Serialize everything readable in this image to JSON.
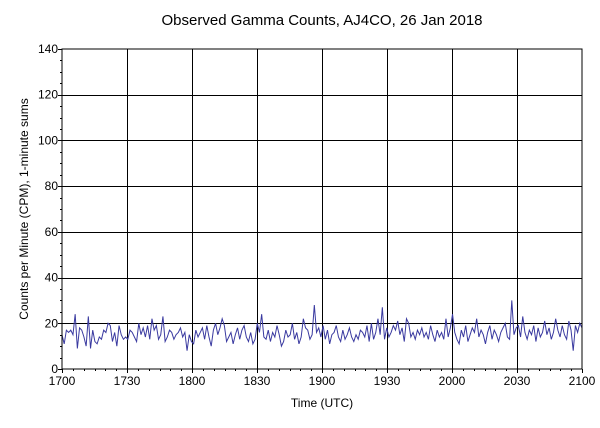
{
  "chart_data": {
    "type": "line",
    "title": "Observed Gamma Counts, AJ4CO, 26 Jan 2018",
    "xlabel": "Time (UTC)",
    "ylabel": "Counts per Minute (CPM), 1-minute sums",
    "x_ticks": [
      "1700",
      "1730",
      "1800",
      "1830",
      "1900",
      "1930",
      "2000",
      "2030",
      "2100"
    ],
    "y_ticks": [
      0,
      20,
      40,
      60,
      80,
      100,
      120,
      140
    ],
    "ylim": [
      0,
      140
    ],
    "grid": true,
    "series_color": "#3a3aa0",
    "series": [
      {
        "values": [
          15,
          11,
          17,
          16,
          17,
          15,
          24,
          9,
          18,
          17,
          14,
          10,
          23,
          9,
          17,
          12,
          11,
          14,
          13,
          17,
          16,
          20,
          19,
          12,
          16,
          10,
          19,
          15,
          13,
          14,
          13,
          17,
          16,
          14,
          12,
          20,
          15,
          18,
          14,
          19,
          13,
          22,
          17,
          19,
          13,
          15,
          23,
          12,
          14,
          17,
          16,
          13,
          15,
          16,
          18,
          14,
          16,
          8,
          15,
          12,
          11,
          17,
          14,
          16,
          18,
          13,
          19,
          14,
          10,
          17,
          20,
          15,
          18,
          22,
          19,
          12,
          14,
          16,
          11,
          15,
          18,
          13,
          17,
          19,
          14,
          12,
          16,
          11,
          13,
          20,
          16,
          24,
          14,
          13,
          17,
          12,
          16,
          14,
          19,
          15,
          10,
          12,
          17,
          14,
          15,
          20,
          13,
          16,
          11,
          14,
          22,
          18,
          17,
          13,
          15,
          28,
          16,
          18,
          14,
          19,
          13,
          17,
          11,
          15,
          16,
          19,
          14,
          12,
          17,
          13,
          15,
          18,
          14,
          12,
          15,
          13,
          17,
          16,
          14,
          19,
          12,
          20,
          13,
          16,
          22,
          15,
          27,
          13,
          18,
          14,
          16,
          19,
          17,
          21,
          15,
          18,
          12,
          22,
          20,
          14,
          16,
          13,
          17,
          15,
          18,
          14,
          16,
          13,
          19,
          15,
          12,
          17,
          14,
          16,
          13,
          22,
          14,
          18,
          24,
          16,
          13,
          11,
          17,
          14,
          19,
          12,
          15,
          18,
          16,
          22,
          14,
          17,
          15,
          11,
          16,
          19,
          13,
          17,
          15,
          12,
          16,
          18,
          20,
          14,
          13,
          30,
          15,
          18,
          19,
          14,
          23,
          16,
          13,
          17,
          15,
          19,
          12,
          18,
          14,
          16,
          21,
          15,
          18,
          13,
          16,
          22,
          17,
          14,
          19,
          15,
          13,
          21,
          17,
          8,
          19,
          16,
          20,
          18
        ]
      }
    ]
  }
}
